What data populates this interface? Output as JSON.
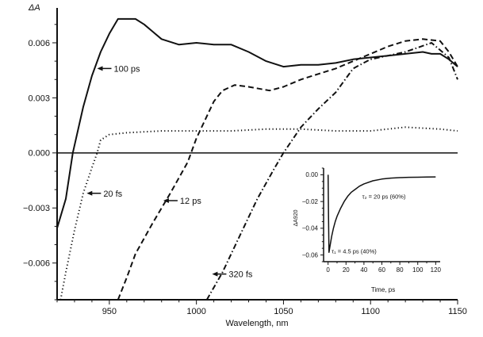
{
  "chart_data": [
    {
      "type": "line",
      "xlabel": "Wavelength, nm",
      "ylabel": "ΔA",
      "xlim": [
        920,
        1150
      ],
      "ylim": [
        -0.008,
        0.0079
      ],
      "xticks": [
        950,
        1000,
        1050,
        1100,
        1150
      ],
      "yticks": [
        -0.006,
        -0.003,
        0.0,
        0.003,
        0.006
      ],
      "ytick_labels": [
        "−0.006",
        "−0.003",
        "0.000",
        "0.003",
        "0.006"
      ],
      "grid": false,
      "zero_line": true,
      "series": [
        {
          "name": "100 ps",
          "style": "solid",
          "x": [
            920,
            925,
            929,
            935,
            940,
            945,
            950,
            955,
            960,
            965,
            970,
            975,
            980,
            990,
            1000,
            1010,
            1020,
            1030,
            1040,
            1050,
            1060,
            1070,
            1080,
            1090,
            1100,
            1110,
            1120,
            1130,
            1135,
            1140,
            1145,
            1150
          ],
          "y": [
            -0.0041,
            -0.0025,
            0.0,
            0.0025,
            0.0042,
            0.0055,
            0.0065,
            0.0073,
            0.0073,
            0.0073,
            0.007,
            0.0066,
            0.0062,
            0.0059,
            0.006,
            0.0059,
            0.0059,
            0.0055,
            0.005,
            0.0047,
            0.0048,
            0.0048,
            0.0049,
            0.0051,
            0.0052,
            0.0053,
            0.0054,
            0.0055,
            0.0054,
            0.0054,
            0.0051,
            0.0047
          ]
        },
        {
          "name": "20 fs",
          "style": "dotted",
          "x": [
            922,
            925,
            930,
            935,
            940,
            943,
            945,
            950,
            960,
            980,
            1000,
            1020,
            1040,
            1060,
            1080,
            1100,
            1120,
            1140,
            1150
          ],
          "y": [
            -0.008,
            -0.0065,
            -0.0042,
            -0.0022,
            -0.0008,
            0.0,
            0.0007,
            0.001,
            0.0011,
            0.0012,
            0.0012,
            0.0012,
            0.0013,
            0.0013,
            0.0012,
            0.0012,
            0.0014,
            0.0013,
            0.0012
          ]
        },
        {
          "name": "12 ps",
          "style": "dashed",
          "x": [
            955,
            960,
            965,
            975,
            985,
            995,
            1000,
            1010,
            1015,
            1022,
            1030,
            1042,
            1050,
            1060,
            1070,
            1080,
            1090,
            1100,
            1110,
            1120,
            1130,
            1140,
            1145,
            1150
          ],
          "y": [
            -0.008,
            -0.0068,
            -0.0055,
            -0.0038,
            -0.0022,
            -0.0005,
            0.0008,
            0.0028,
            0.0034,
            0.0037,
            0.0036,
            0.0034,
            0.0036,
            0.004,
            0.0043,
            0.0046,
            0.005,
            0.0054,
            0.0058,
            0.0061,
            0.0062,
            0.0061,
            0.0055,
            0.0047
          ]
        },
        {
          "name": "320 fs",
          "style": "dash-dot",
          "x": [
            1006,
            1015,
            1025,
            1035,
            1045,
            1050,
            1060,
            1070,
            1080,
            1090,
            1100,
            1110,
            1120,
            1135,
            1145,
            1150
          ],
          "y": [
            -0.008,
            -0.0065,
            -0.0045,
            -0.0025,
            -0.0008,
            0.0,
            0.0014,
            0.0024,
            0.0033,
            0.0046,
            0.0051,
            0.0053,
            0.0055,
            0.006,
            0.0052,
            0.004
          ]
        }
      ],
      "annotations": [
        {
          "text": "100 ps",
          "x": 943,
          "y": 0.0046
        },
        {
          "text": "20 fs",
          "x": 937,
          "y": -0.0022
        },
        {
          "text": "12 ps",
          "x": 981,
          "y": -0.0026
        },
        {
          "text": "320 fs",
          "x": 1009,
          "y": -0.0066
        }
      ]
    },
    {
      "type": "line",
      "inset": true,
      "xlabel": "Time, ps",
      "ylabel": "ΔA920",
      "xlim": [
        -5,
        125
      ],
      "ylim": [
        -0.065,
        0.005
      ],
      "xticks": [
        0,
        20,
        40,
        60,
        80,
        100,
        120
      ],
      "yticks": [
        0.0,
        -0.02,
        -0.04,
        -0.06
      ],
      "ytick_labels": [
        "0.00",
        "−0.02",
        "−0.04",
        "−0.06"
      ],
      "series": [
        {
          "style": "solid",
          "x": [
            0,
            0.5,
            1,
            2,
            4,
            6,
            8,
            10,
            14,
            18,
            22,
            26,
            30,
            35,
            40,
            50,
            60,
            70,
            80,
            90,
            100,
            110,
            120
          ],
          "y": [
            0.0,
            -0.03,
            -0.058,
            -0.054,
            -0.046,
            -0.04,
            -0.035,
            -0.031,
            -0.025,
            -0.02,
            -0.016,
            -0.013,
            -0.011,
            -0.0085,
            -0.0068,
            -0.0045,
            -0.0032,
            -0.0025,
            -0.0021,
            -0.0019,
            -0.0018,
            -0.0017,
            -0.0016
          ]
        }
      ],
      "annotations": [
        {
          "text": "τ₂ = 20 ps (60%)",
          "x": 38,
          "y": -0.016
        },
        {
          "text": "τ₁ = 4.5 ps (40%)",
          "x": 4,
          "y": -0.057
        }
      ]
    }
  ]
}
